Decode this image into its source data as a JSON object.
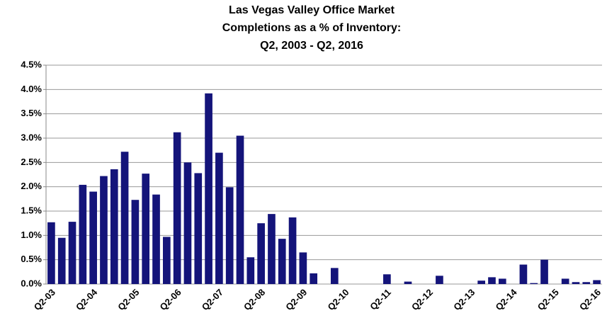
{
  "chart_data": {
    "type": "bar",
    "title": [
      "Las Vegas Valley Office Market",
      "Completions as a % of Inventory:",
      "Q2, 2003 - Q2, 2016"
    ],
    "categories": [
      "Q2-03",
      null,
      null,
      null,
      "Q2-04",
      null,
      null,
      null,
      "Q2-05",
      null,
      null,
      null,
      "Q2-06",
      null,
      null,
      null,
      "Q2-07",
      null,
      null,
      null,
      "Q2-08",
      null,
      null,
      null,
      "Q2-09",
      null,
      null,
      null,
      "Q2-10",
      null,
      null,
      null,
      "Q2-11",
      null,
      null,
      null,
      "Q2-12",
      null,
      null,
      null,
      "Q2-13",
      null,
      null,
      null,
      "Q2-14",
      null,
      null,
      null,
      "Q2-15",
      null,
      null,
      null,
      "Q2-16"
    ],
    "values": [
      1.27,
      0.95,
      1.28,
      2.04,
      1.9,
      2.22,
      2.36,
      2.72,
      1.73,
      2.27,
      1.84,
      0.97,
      3.12,
      2.5,
      2.28,
      3.92,
      2.7,
      1.99,
      3.05,
      0.55,
      1.25,
      1.44,
      0.93,
      1.37,
      0.65,
      0.22,
      0,
      0.33,
      0,
      0,
      0,
      0,
      0.2,
      0,
      0.05,
      0,
      0,
      0.17,
      0,
      0,
      0,
      0.07,
      0.14,
      0.11,
      0,
      0.4,
      0.02,
      0.5,
      0,
      0.11,
      0.04,
      0.04,
      0.08
    ],
    "color": "#14147a",
    "ylim": [
      0,
      4.5
    ],
    "yticks": [
      {
        "value": 0,
        "label": "0.0%"
      },
      {
        "value": 0.5,
        "label": "0.5%"
      },
      {
        "value": 1,
        "label": "1.0%"
      },
      {
        "value": 1.5,
        "label": "1.5%"
      },
      {
        "value": 2,
        "label": "2.0%"
      },
      {
        "value": 2.5,
        "label": "2.5%"
      },
      {
        "value": 3,
        "label": "3.0%"
      },
      {
        "value": 3.5,
        "label": "3.5%"
      },
      {
        "value": 4,
        "label": "4.0%"
      },
      {
        "value": 4.5,
        "label": "4.5%"
      }
    ],
    "grid": true
  }
}
